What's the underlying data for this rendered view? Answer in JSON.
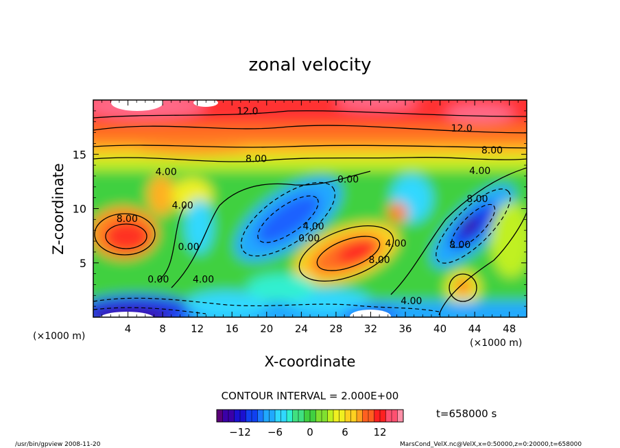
{
  "chart_data": {
    "type": "heatmap",
    "title": "zonal velocity",
    "xlabel": "X-coordinate",
    "ylabel": "Z-coordinate",
    "x_unit_label_left": "(×1000 m)",
    "x_unit_label_right": "(×1000 m)",
    "xlim": [
      0,
      50
    ],
    "ylim": [
      0,
      20
    ],
    "x_ticks": [
      4,
      8,
      12,
      16,
      20,
      24,
      28,
      32,
      36,
      40,
      44,
      48
    ],
    "y_ticks": [
      5,
      10,
      15
    ],
    "contour_interval_text": "CONTOUR INTERVAL = 2.000E+00",
    "colorbar": {
      "min": -16,
      "max": 16,
      "ticks": [
        -12,
        -6,
        0,
        6,
        12
      ],
      "colors": [
        "#5a0078",
        "#3a00a8",
        "#1a10d0",
        "#1040f0",
        "#1a78ff",
        "#20a8ff",
        "#30d8ff",
        "#30f0d0",
        "#40e080",
        "#40d040",
        "#80e030",
        "#c0f020",
        "#f0f020",
        "#ffd020",
        "#ffa020",
        "#ff6020",
        "#ff2020",
        "#ff5070",
        "#ff90a8"
      ]
    },
    "contour_labels": [
      {
        "text": "12.0",
        "x": 17.8,
        "y": 19.0
      },
      {
        "text": "12.0",
        "x": 42.5,
        "y": 17.4
      },
      {
        "text": "8.00",
        "x": 18.8,
        "y": 14.6
      },
      {
        "text": "8.00",
        "x": 46.0,
        "y": 15.4
      },
      {
        "text": "4.00",
        "x": 8.4,
        "y": 13.4
      },
      {
        "text": "4.00",
        "x": 44.6,
        "y": 13.5
      },
      {
        "text": "0.00",
        "x": 29.4,
        "y": 12.7
      },
      {
        "text": "8.00",
        "x": 3.9,
        "y": 9.1
      },
      {
        "text": "4.00",
        "x": 10.3,
        "y": 10.3
      },
      {
        "text": "0.00",
        "x": 11.0,
        "y": 6.5
      },
      {
        "text": "4.00",
        "x": 25.4,
        "y": 8.4
      },
      {
        "text": "0.00",
        "x": 24.9,
        "y": 7.3
      },
      {
        "text": "4.00",
        "x": 34.9,
        "y": 6.8
      },
      {
        "text": "8.00",
        "x": 33.0,
        "y": 5.3
      },
      {
        "text": "8.00",
        "x": 42.3,
        "y": 6.7
      },
      {
        "text": "0.00",
        "x": 7.5,
        "y": 3.5
      },
      {
        "text": "4.00",
        "x": 12.7,
        "y": 3.5
      },
      {
        "text": "4.00",
        "x": 36.7,
        "y": 1.5
      },
      {
        "text": "8.00",
        "x": 44.3,
        "y": 10.9
      }
    ],
    "time_label": "t=658000 s"
  },
  "footer": {
    "left": "/usr/bin/gpview  2008-11-20",
    "right": "MarsCond_VelX.nc@VelX,x=0:50000,z=0:20000,t=658000"
  }
}
